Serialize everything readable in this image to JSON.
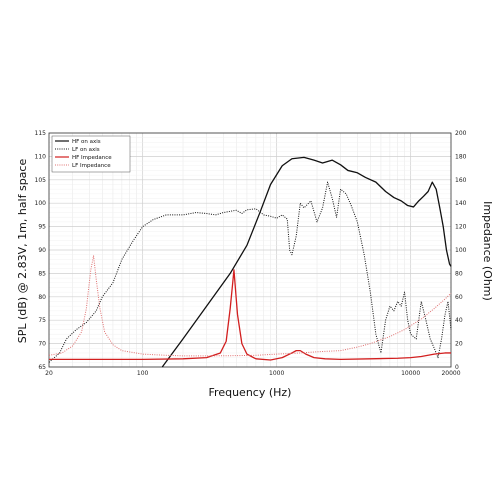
{
  "chart_data": {
    "type": "line",
    "xlabel": "Frequency (Hz)",
    "ylabel": "SPL (dB) @ 2.83V, 1m, half space",
    "y2label": "Impedance (Ohm)",
    "x_scale": "log",
    "xlim": [
      20,
      20000
    ],
    "ylim": [
      65,
      115
    ],
    "y2lim": [
      0,
      200
    ],
    "x_tick_labels": [
      "20",
      "100",
      "1000",
      "10000",
      "20000"
    ],
    "y_tick_labels": [
      "65",
      "70",
      "75",
      "80",
      "85",
      "90",
      "95",
      "100",
      "105",
      "110",
      "115"
    ],
    "y2_tick_labels": [
      "0",
      "20",
      "40",
      "60",
      "80",
      "100",
      "120",
      "140",
      "160",
      "180",
      "200"
    ],
    "grid": true,
    "legend_position": "top-left",
    "series": [
      {
        "name": "HF on axis",
        "axis": "left",
        "color": "#111111",
        "dash": "solid",
        "points": [
          [
            140,
            65
          ],
          [
            200,
            71
          ],
          [
            300,
            78
          ],
          [
            450,
            85
          ],
          [
            600,
            91
          ],
          [
            750,
            98
          ],
          [
            900,
            104
          ],
          [
            1100,
            108
          ],
          [
            1300,
            109.5
          ],
          [
            1600,
            109.8
          ],
          [
            1900,
            109.2
          ],
          [
            2200,
            108.6
          ],
          [
            2600,
            109.2
          ],
          [
            3000,
            108.2
          ],
          [
            3400,
            107.0
          ],
          [
            4000,
            106.5
          ],
          [
            4600,
            105.5
          ],
          [
            5500,
            104.5
          ],
          [
            6500,
            102.5
          ],
          [
            7500,
            101.2
          ],
          [
            8500,
            100.5
          ],
          [
            9500,
            99.5
          ],
          [
            10500,
            99.2
          ],
          [
            11500,
            100.5
          ],
          [
            12500,
            101.5
          ],
          [
            13500,
            102.5
          ],
          [
            14500,
            104.5
          ],
          [
            15500,
            103.0
          ],
          [
            16500,
            99.0
          ],
          [
            17500,
            95.0
          ],
          [
            18500,
            90.0
          ],
          [
            19500,
            87.0
          ],
          [
            20000,
            86.5
          ]
        ]
      },
      {
        "name": "LF on axis",
        "axis": "left",
        "color": "#111111",
        "dash": "dotted",
        "points": [
          [
            20,
            66
          ],
          [
            24,
            68
          ],
          [
            27,
            71
          ],
          [
            32,
            73
          ],
          [
            38,
            74.5
          ],
          [
            45,
            77
          ],
          [
            50,
            80
          ],
          [
            60,
            83
          ],
          [
            70,
            88
          ],
          [
            85,
            92
          ],
          [
            100,
            95
          ],
          [
            120,
            96.5
          ],
          [
            150,
            97.5
          ],
          [
            200,
            97.5
          ],
          [
            250,
            98.0
          ],
          [
            300,
            97.8
          ],
          [
            350,
            97.5
          ],
          [
            400,
            98.0
          ],
          [
            500,
            98.5
          ],
          [
            550,
            97.8
          ],
          [
            600,
            98.6
          ],
          [
            700,
            98.8
          ],
          [
            800,
            97.5
          ],
          [
            900,
            97.2
          ],
          [
            1000,
            96.8
          ],
          [
            1100,
            97.5
          ],
          [
            1200,
            96.6
          ],
          [
            1250,
            90.0
          ],
          [
            1300,
            89.0
          ],
          [
            1400,
            93.0
          ],
          [
            1500,
            100.0
          ],
          [
            1600,
            99.0
          ],
          [
            1800,
            100.5
          ],
          [
            2000,
            96.0
          ],
          [
            2200,
            99.0
          ],
          [
            2400,
            104.5
          ],
          [
            2600,
            101.0
          ],
          [
            2800,
            97.0
          ],
          [
            3000,
            103.0
          ],
          [
            3300,
            102.0
          ],
          [
            3600,
            99.5
          ],
          [
            4000,
            96.0
          ],
          [
            4500,
            89.0
          ],
          [
            5000,
            81.0
          ],
          [
            5500,
            72.0
          ],
          [
            6000,
            68.0
          ],
          [
            6500,
            75.0
          ],
          [
            7000,
            78.0
          ],
          [
            7500,
            77.0
          ],
          [
            8000,
            79.0
          ],
          [
            8500,
            78.0
          ],
          [
            9000,
            81.0
          ],
          [
            9500,
            75.0
          ],
          [
            10000,
            72.0
          ],
          [
            11000,
            71.0
          ],
          [
            12000,
            79.0
          ],
          [
            13000,
            75.0
          ],
          [
            14000,
            71.0
          ],
          [
            15000,
            69.0
          ],
          [
            16000,
            67.0
          ],
          [
            17000,
            71.0
          ],
          [
            18000,
            76.0
          ],
          [
            19000,
            79.0
          ],
          [
            20000,
            73.0
          ]
        ]
      },
      {
        "name": "HF Impedance",
        "axis": "right",
        "color": "#d21f1f",
        "dash": "solid",
        "points": [
          [
            20,
            6.5
          ],
          [
            100,
            6.5
          ],
          [
            200,
            7
          ],
          [
            300,
            8
          ],
          [
            380,
            12
          ],
          [
            420,
            22
          ],
          [
            450,
            50
          ],
          [
            470,
            72
          ],
          [
            480,
            83
          ],
          [
            490,
            70
          ],
          [
            510,
            45
          ],
          [
            550,
            20
          ],
          [
            600,
            11
          ],
          [
            700,
            7
          ],
          [
            900,
            6
          ],
          [
            1100,
            8
          ],
          [
            1300,
            12
          ],
          [
            1400,
            14
          ],
          [
            1500,
            14
          ],
          [
            1650,
            11
          ],
          [
            1900,
            8
          ],
          [
            2300,
            7
          ],
          [
            3000,
            6.5
          ],
          [
            5000,
            7
          ],
          [
            8000,
            7.5
          ],
          [
            10000,
            8
          ],
          [
            12000,
            9
          ],
          [
            15000,
            11
          ],
          [
            18000,
            12
          ],
          [
            20000,
            12
          ]
        ]
      },
      {
        "name": "LF Impedance",
        "axis": "right",
        "color": "#e07070",
        "dash": "dotted",
        "points": [
          [
            20,
            10
          ],
          [
            25,
            12
          ],
          [
            30,
            18
          ],
          [
            35,
            30
          ],
          [
            38,
            50
          ],
          [
            41,
            83
          ],
          [
            43,
            95
          ],
          [
            45,
            75
          ],
          [
            48,
            50
          ],
          [
            52,
            30
          ],
          [
            60,
            19
          ],
          [
            70,
            14
          ],
          [
            100,
            11
          ],
          [
            150,
            10
          ],
          [
            200,
            9.5
          ],
          [
            300,
            9.5
          ],
          [
            500,
            9.7
          ],
          [
            700,
            10
          ],
          [
            1000,
            11
          ],
          [
            1500,
            12
          ],
          [
            2000,
            13
          ],
          [
            3000,
            14
          ],
          [
            4000,
            17
          ],
          [
            5000,
            20
          ],
          [
            7000,
            26
          ],
          [
            9000,
            32
          ],
          [
            12000,
            41
          ],
          [
            15000,
            50
          ],
          [
            18000,
            58
          ],
          [
            20000,
            63
          ]
        ]
      }
    ]
  }
}
